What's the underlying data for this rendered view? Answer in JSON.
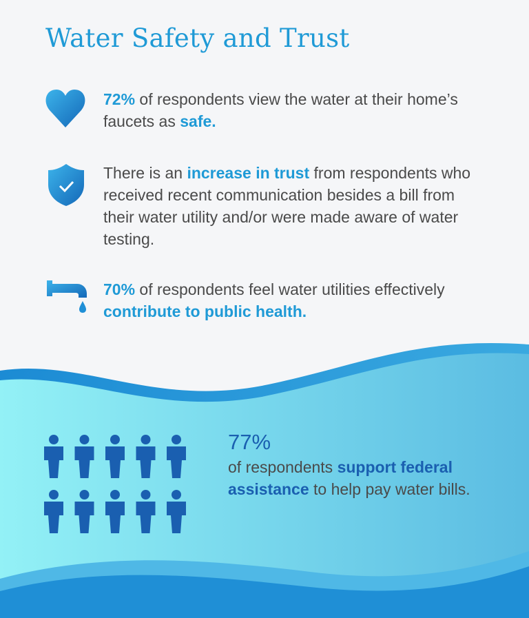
{
  "title": "Water Safety and Trust",
  "items": [
    {
      "segments": [
        {
          "text": "72%",
          "emphasis": true
        },
        {
          "text": " of respondents view the water at their home’s faucets as ",
          "emphasis": false
        },
        {
          "text": "safe.",
          "emphasis": true
        }
      ]
    },
    {
      "segments": [
        {
          "text": "There is an ",
          "emphasis": false
        },
        {
          "text": "increase in trust",
          "emphasis": true
        },
        {
          "text": " from respondents who received recent communication besides a bill from their water utility and/or were made aware of water testing.",
          "emphasis": false
        }
      ]
    },
    {
      "segments": [
        {
          "text": "70%",
          "emphasis": true
        },
        {
          "text": " of respondents feel water utilities effectively ",
          "emphasis": false
        },
        {
          "text": "contribute to public health.",
          "emphasis": true
        }
      ]
    }
  ],
  "stat": {
    "value": "77%",
    "segments": [
      {
        "text": "of respondents ",
        "emphasis": false
      },
      {
        "text": "support federal assistance",
        "emphasis": true
      },
      {
        "text": " to help pay water bills.",
        "emphasis": false
      }
    ]
  }
}
